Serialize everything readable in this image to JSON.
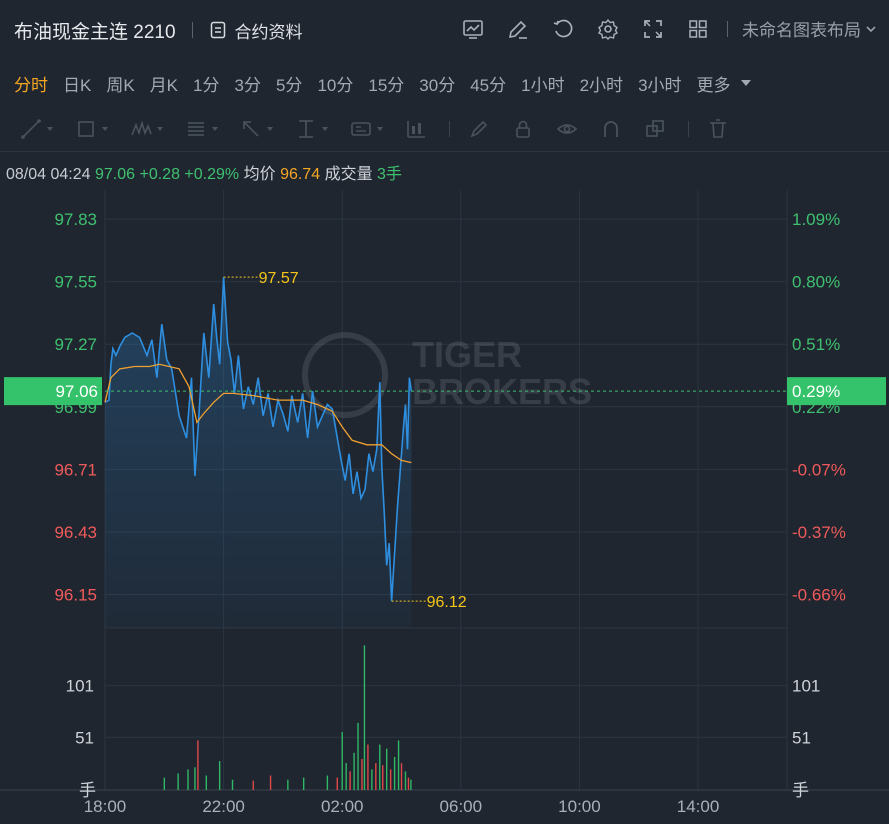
{
  "header": {
    "title": "布油现金主连 2210",
    "contract_link": "合约资料",
    "layout_name": "未命名图表布局"
  },
  "tabs": [
    {
      "label": "分时",
      "active": true
    },
    {
      "label": "日K"
    },
    {
      "label": "周K"
    },
    {
      "label": "月K"
    },
    {
      "label": "1分"
    },
    {
      "label": "3分"
    },
    {
      "label": "5分"
    },
    {
      "label": "10分"
    },
    {
      "label": "15分"
    },
    {
      "label": "30分"
    },
    {
      "label": "45分"
    },
    {
      "label": "1小时"
    },
    {
      "label": "2小时"
    },
    {
      "label": "3小时"
    },
    {
      "label": "更多"
    }
  ],
  "info_bar": {
    "datetime": "08/04 04:24",
    "price": "97.06",
    "change": "+0.28",
    "change_pct": "+0.29%",
    "avg_label": "均价",
    "avg_value": "96.74",
    "volume_label": "成交量",
    "volume_value": "3手"
  },
  "watermark": {
    "line1": "TIGER",
    "line2": "BROKERS"
  },
  "colors": {
    "up": "#3fc06f",
    "down": "#f05a5a",
    "price_line": "#2e8fe0",
    "avg_line": "#f0a030",
    "annotation": "#f5c518"
  },
  "chart_data": {
    "type": "line",
    "x_ticks": [
      "18:00",
      "22:00",
      "02:00",
      "06:00",
      "10:00",
      "14:00"
    ],
    "price_axis_left": [
      "97.83",
      "97.55",
      "97.27",
      "96.99",
      "96.71",
      "96.43",
      "96.15"
    ],
    "price_axis_right": [
      "1.09%",
      "0.80%",
      "0.51%",
      "0.22%",
      "-0.07%",
      "-0.37%",
      "-0.66%"
    ],
    "current_price": "97.06",
    "current_pct": "0.29%",
    "prev_close_approx": 96.78,
    "ylim": [
      96.0,
      97.96
    ],
    "high": {
      "value": "97.57",
      "time_min": 240
    },
    "low": {
      "value": "96.12",
      "time_min": 580
    },
    "price_series": [
      [
        0,
        97.01
      ],
      [
        8,
        97.02
      ],
      [
        12,
        97.18
      ],
      [
        16,
        97.25
      ],
      [
        22,
        97.22
      ],
      [
        30,
        97.26
      ],
      [
        40,
        97.3
      ],
      [
        55,
        97.32
      ],
      [
        70,
        97.3
      ],
      [
        85,
        97.22
      ],
      [
        95,
        97.29
      ],
      [
        105,
        97.12
      ],
      [
        115,
        97.36
      ],
      [
        125,
        97.2
      ],
      [
        135,
        97.16
      ],
      [
        150,
        96.95
      ],
      [
        165,
        96.85
      ],
      [
        175,
        97.12
      ],
      [
        182,
        96.68
      ],
      [
        190,
        96.95
      ],
      [
        200,
        97.32
      ],
      [
        210,
        97.12
      ],
      [
        220,
        97.45
      ],
      [
        226,
        97.3
      ],
      [
        232,
        97.18
      ],
      [
        240,
        97.57
      ],
      [
        248,
        97.28
      ],
      [
        255,
        97.2
      ],
      [
        262,
        97.05
      ],
      [
        270,
        97.22
      ],
      [
        280,
        96.98
      ],
      [
        290,
        97.08
      ],
      [
        300,
        97.0
      ],
      [
        310,
        97.12
      ],
      [
        320,
        96.95
      ],
      [
        330,
        97.05
      ],
      [
        340,
        96.9
      ],
      [
        350,
        97.02
      ],
      [
        360,
        96.96
      ],
      [
        370,
        96.88
      ],
      [
        378,
        97.04
      ],
      [
        390,
        96.92
      ],
      [
        400,
        97.05
      ],
      [
        410,
        96.85
      ],
      [
        420,
        97.06
      ],
      [
        430,
        96.9
      ],
      [
        440,
        96.95
      ],
      [
        450,
        97.0
      ],
      [
        460,
        96.98
      ],
      [
        470,
        96.85
      ],
      [
        478,
        96.75
      ],
      [
        486,
        96.66
      ],
      [
        494,
        96.78
      ],
      [
        502,
        96.6
      ],
      [
        510,
        96.7
      ],
      [
        518,
        96.58
      ],
      [
        526,
        96.62
      ],
      [
        534,
        96.78
      ],
      [
        542,
        96.7
      ],
      [
        550,
        96.8
      ],
      [
        556,
        97.1
      ],
      [
        560,
        96.72
      ],
      [
        565,
        96.52
      ],
      [
        570,
        96.28
      ],
      [
        575,
        96.38
      ],
      [
        580,
        96.12
      ],
      [
        585,
        96.3
      ],
      [
        592,
        96.55
      ],
      [
        598,
        96.72
      ],
      [
        604,
        96.9
      ],
      [
        608,
        97.0
      ],
      [
        612,
        96.8
      ],
      [
        616,
        97.12
      ],
      [
        620,
        97.06
      ]
    ],
    "avg_series": [
      [
        0,
        97.01
      ],
      [
        12,
        97.12
      ],
      [
        30,
        97.16
      ],
      [
        60,
        97.17
      ],
      [
        90,
        97.17
      ],
      [
        110,
        97.18
      ],
      [
        150,
        97.16
      ],
      [
        170,
        97.08
      ],
      [
        186,
        96.92
      ],
      [
        200,
        96.96
      ],
      [
        220,
        97.01
      ],
      [
        240,
        97.05
      ],
      [
        260,
        97.05
      ],
      [
        300,
        97.04
      ],
      [
        350,
        97.02
      ],
      [
        400,
        97.02
      ],
      [
        430,
        97.0
      ],
      [
        460,
        96.97
      ],
      [
        480,
        96.9
      ],
      [
        500,
        96.84
      ],
      [
        530,
        96.82
      ],
      [
        560,
        96.82
      ],
      [
        580,
        96.78
      ],
      [
        600,
        96.75
      ],
      [
        620,
        96.74
      ]
    ],
    "volume_axis": [
      "101",
      "51",
      "手"
    ],
    "volume_ylim": [
      0,
      150
    ],
    "volume_spikes": [
      [
        120,
        12,
        "up"
      ],
      [
        148,
        16,
        "up"
      ],
      [
        168,
        20,
        "up"
      ],
      [
        182,
        22,
        "up"
      ],
      [
        188,
        48,
        "down"
      ],
      [
        205,
        14,
        "up"
      ],
      [
        232,
        28,
        "up"
      ],
      [
        258,
        10,
        "up"
      ],
      [
        300,
        9,
        "down"
      ],
      [
        335,
        14,
        "down"
      ],
      [
        370,
        10,
        "up"
      ],
      [
        402,
        12,
        "up"
      ],
      [
        450,
        14,
        "up"
      ],
      [
        470,
        12,
        "down"
      ],
      [
        480,
        56,
        "up"
      ],
      [
        488,
        26,
        "up"
      ],
      [
        496,
        18,
        "down"
      ],
      [
        504,
        36,
        "up"
      ],
      [
        512,
        65,
        "up"
      ],
      [
        520,
        30,
        "down"
      ],
      [
        525,
        140,
        "up"
      ],
      [
        532,
        44,
        "down"
      ],
      [
        540,
        20,
        "up"
      ],
      [
        548,
        26,
        "down"
      ],
      [
        556,
        44,
        "up"
      ],
      [
        562,
        24,
        "down"
      ],
      [
        570,
        40,
        "up"
      ],
      [
        578,
        20,
        "down"
      ],
      [
        586,
        32,
        "up"
      ],
      [
        594,
        48,
        "up"
      ],
      [
        600,
        26,
        "down"
      ],
      [
        608,
        18,
        "up"
      ],
      [
        614,
        12,
        "down"
      ],
      [
        619,
        10,
        "up"
      ]
    ]
  }
}
